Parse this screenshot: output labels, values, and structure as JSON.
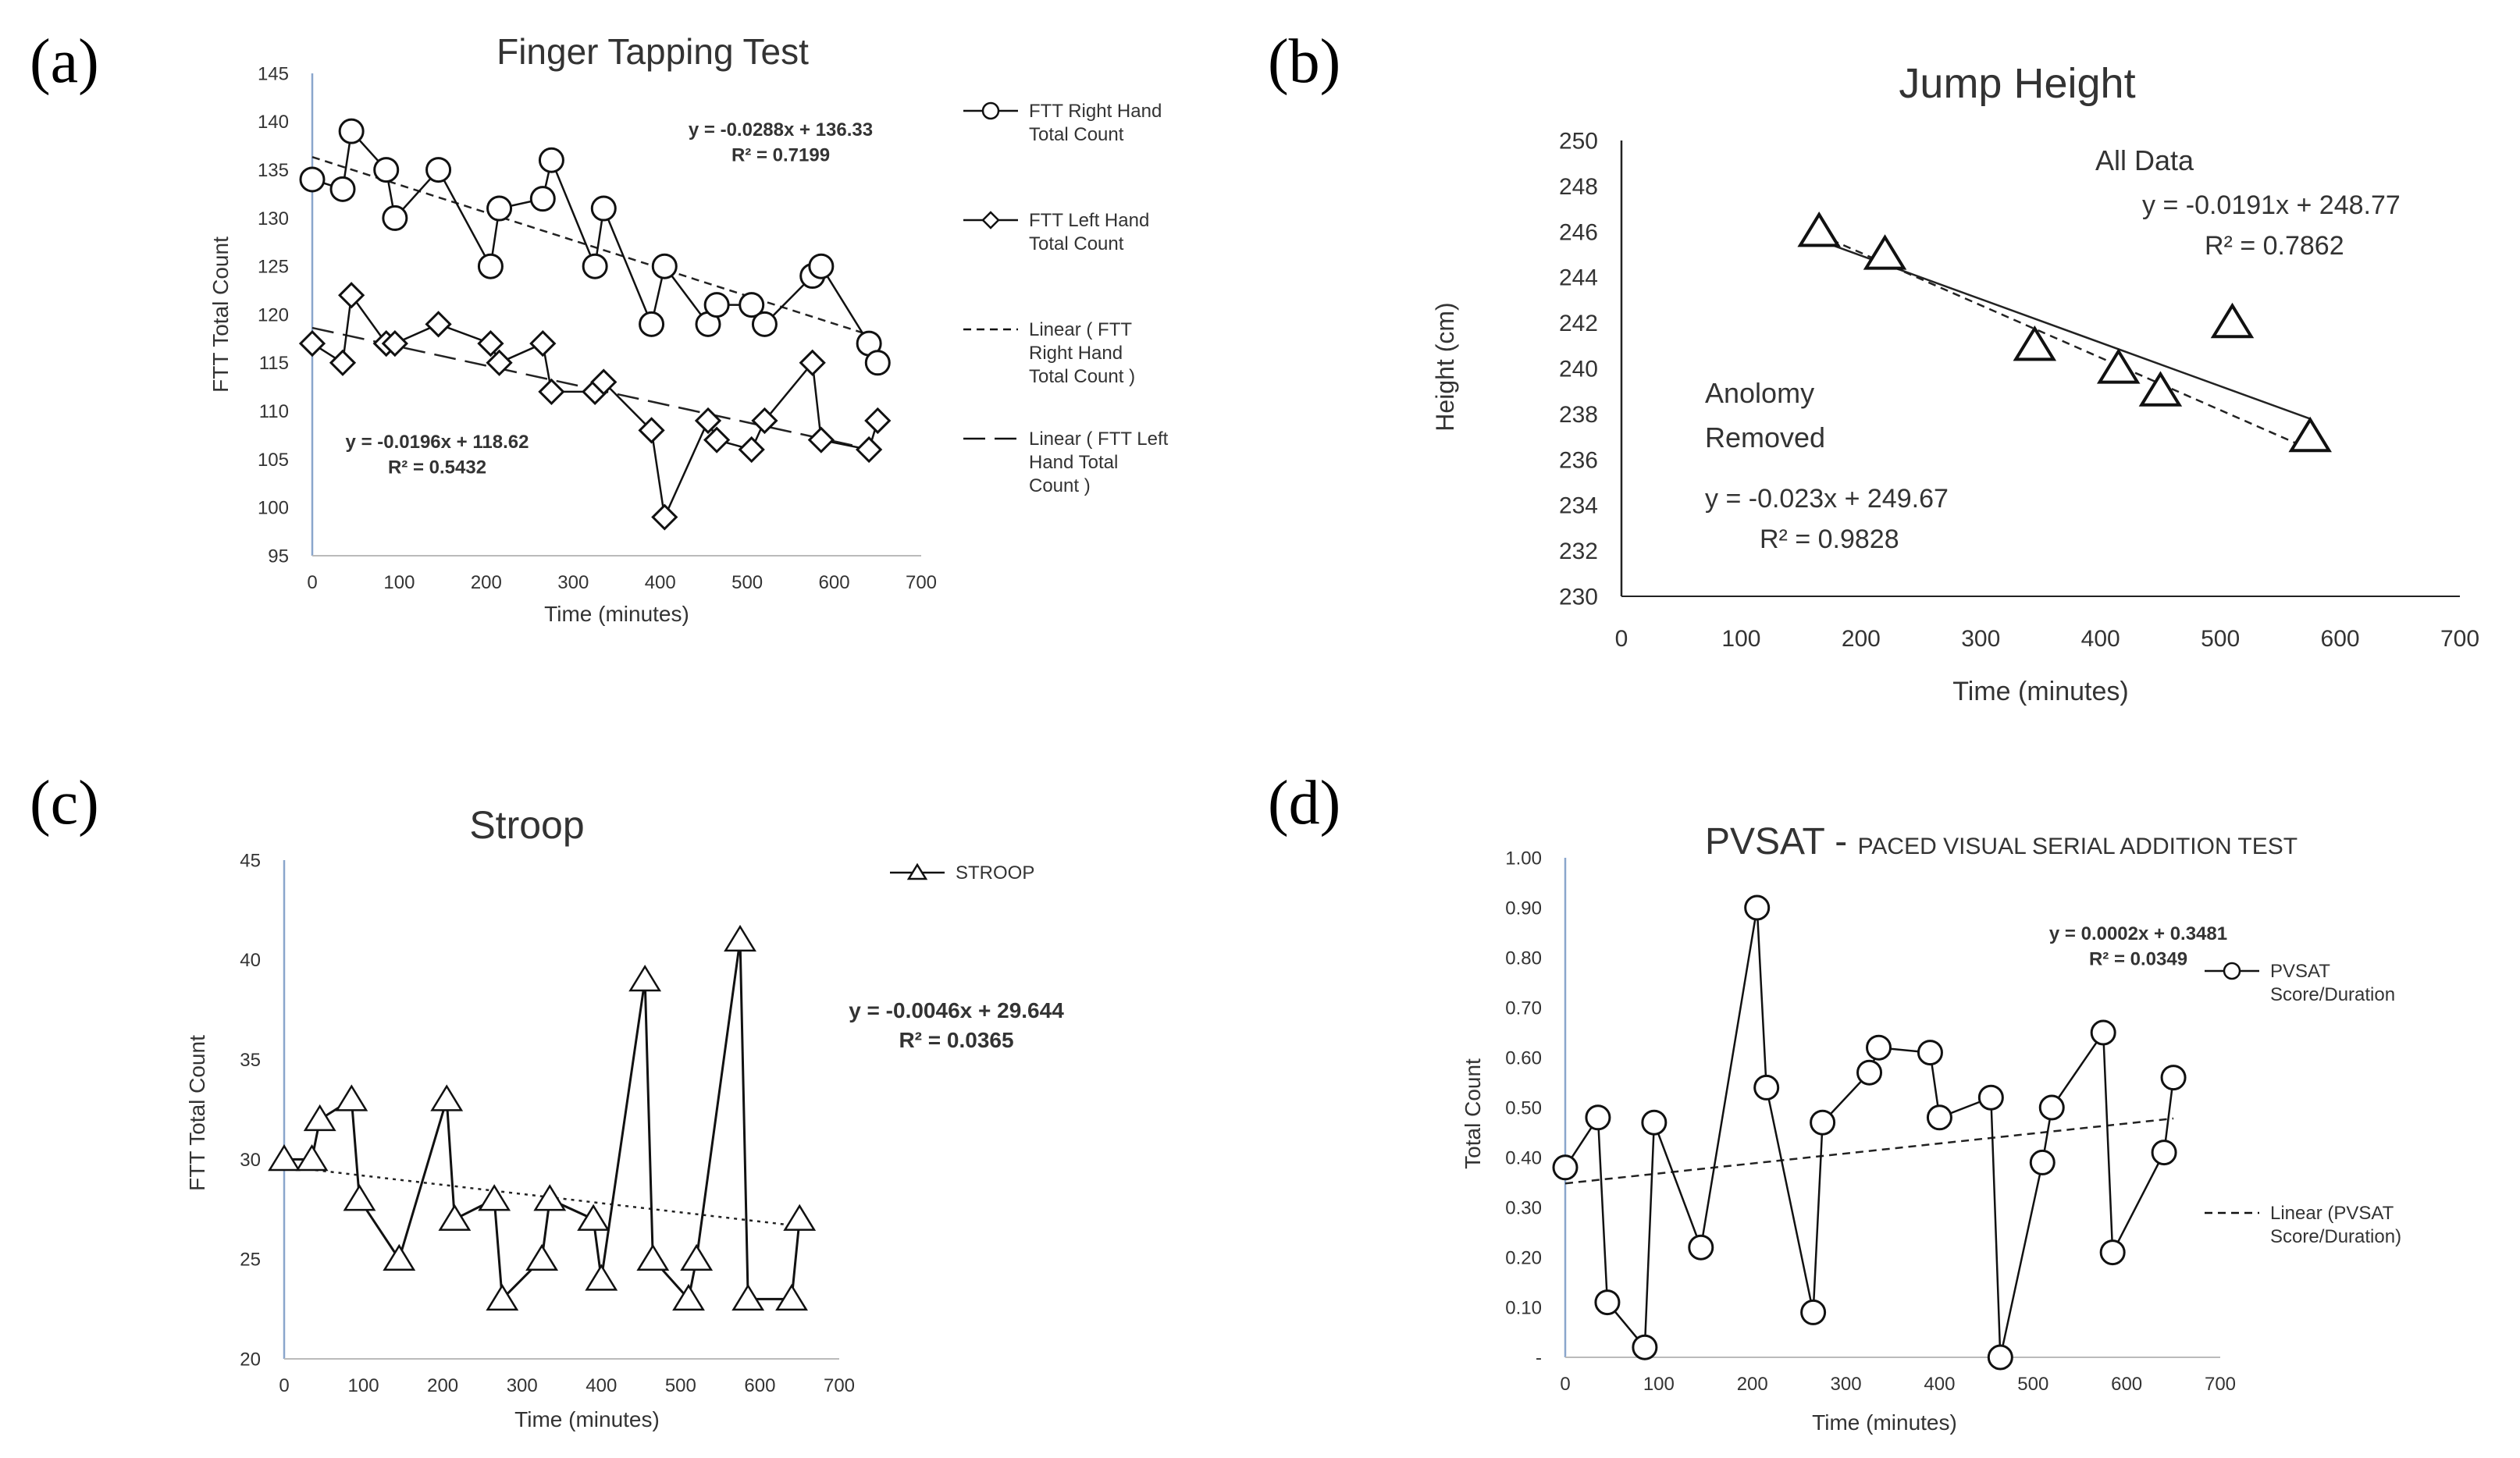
{
  "chart_data": [
    {
      "panel_label": "(a)",
      "type": "line",
      "title": "Finger Tapping Test",
      "xlabel": "Time (minutes)",
      "ylabel": "FTT Total Count",
      "xlim": [
        0,
        700
      ],
      "ylim": [
        95,
        145
      ],
      "xticks": [
        "0",
        "100",
        "200",
        "300",
        "400",
        "500",
        "600",
        "700"
      ],
      "yticks": [
        "95",
        "100",
        "105",
        "110",
        "115",
        "120",
        "125",
        "130",
        "135",
        "140",
        "145"
      ],
      "series": [
        {
          "name": "FTT Right Hand Total Count",
          "marker": "circle",
          "x": [
            0,
            35,
            45,
            85,
            95,
            145,
            205,
            215,
            265,
            275,
            325,
            335,
            390,
            405,
            455,
            465,
            505,
            520,
            575,
            585,
            640,
            650
          ],
          "values": [
            134,
            133,
            139,
            135,
            130,
            135,
            125,
            131,
            132,
            136,
            125,
            131,
            119,
            125,
            119,
            121,
            121,
            119,
            124,
            125,
            117,
            115
          ]
        },
        {
          "name": "FTT Left Hand Total Count",
          "marker": "diamond",
          "x": [
            0,
            35,
            45,
            85,
            95,
            145,
            205,
            215,
            265,
            275,
            325,
            335,
            390,
            405,
            455,
            465,
            505,
            520,
            575,
            585,
            640,
            650
          ],
          "values": [
            117,
            115,
            122,
            117,
            117,
            119,
            117,
            115,
            117,
            112,
            112,
            113,
            108,
            99,
            109,
            107,
            106,
            109,
            115,
            107,
            106,
            109
          ]
        }
      ],
      "trendlines": [
        {
          "name": "Linear ( FTT Right Hand Total Count )",
          "slope": -0.0288,
          "intercept": 136.33,
          "x": [
            0,
            650
          ],
          "dash": "short",
          "equation": "y = -0.0288x + 136.33",
          "r2": "R² = 0.7199"
        },
        {
          "name": "Linear ( FTT Left Hand Total Count )",
          "slope": -0.0196,
          "intercept": 118.62,
          "x": [
            0,
            650
          ],
          "dash": "long",
          "equation": "y = -0.0196x + 118.62",
          "r2": "R² = 0.5432"
        }
      ],
      "legend": [
        {
          "lines": [
            "FTT Right Hand",
            "Total Count"
          ],
          "marker": "circle",
          "dash": "none"
        },
        {
          "lines": [
            "FTT Left Hand",
            "Total Count"
          ],
          "marker": "diamond",
          "dash": "none"
        },
        {
          "lines": [
            "Linear ( FTT",
            "Right Hand",
            "Total Count )"
          ],
          "marker": "none",
          "dash": "short"
        },
        {
          "lines": [
            "Linear ( FTT Left",
            "Hand Total",
            "Count )"
          ],
          "marker": "none",
          "dash": "long"
        }
      ]
    },
    {
      "panel_label": "(b)",
      "type": "scatter",
      "title": "Jump Height",
      "xlabel": "Time (minutes)",
      "ylabel": "Height (cm)",
      "xlim": [
        0,
        700
      ],
      "ylim": [
        230,
        250
      ],
      "xticks": [
        "0",
        "100",
        "200",
        "300",
        "400",
        "500",
        "600",
        "700"
      ],
      "yticks": [
        "230",
        "232",
        "234",
        "236",
        "238",
        "240",
        "242",
        "244",
        "246",
        "248",
        "250"
      ],
      "series": [
        {
          "name": "Jump Height",
          "marker": "triangle",
          "x": [
            165,
            220,
            345,
            415,
            450,
            510,
            575
          ],
          "values": [
            246,
            245,
            241,
            240,
            239,
            242,
            237
          ]
        }
      ],
      "trendlines": [
        {
          "name": "All Data",
          "slope": -0.0191,
          "intercept": 248.77,
          "x": [
            165,
            575
          ],
          "dash": "none",
          "label": "All Data",
          "equation": "y = -0.0191x + 248.77",
          "r2": "R² = 0.7862"
        },
        {
          "name": "Anolomy Removed",
          "slope": -0.023,
          "intercept": 249.67,
          "x": [
            165,
            575
          ],
          "dash": "short",
          "label_lines": [
            "Anolomy",
            "Removed"
          ],
          "equation": "y = -0.023x + 249.67",
          "r2": "R² = 0.9828"
        }
      ]
    },
    {
      "panel_label": "(c)",
      "type": "line",
      "title": "Stroop",
      "xlabel": "Time (minutes)",
      "ylabel": "FTT Total Count",
      "xlim": [
        0,
        700
      ],
      "ylim": [
        20,
        45
      ],
      "xticks": [
        "0",
        "100",
        "200",
        "300",
        "400",
        "500",
        "600",
        "700"
      ],
      "yticks": [
        "20",
        "25",
        "30",
        "35",
        "40",
        "45"
      ],
      "series": [
        {
          "name": "STROOP",
          "marker": "triangle",
          "x": [
            0,
            35,
            45,
            85,
            95,
            145,
            205,
            215,
            265,
            275,
            325,
            335,
            390,
            400,
            455,
            465,
            510,
            520,
            575,
            585,
            640,
            650
          ],
          "values": [
            30,
            30,
            32,
            33,
            28,
            25,
            33,
            27,
            28,
            23,
            25,
            28,
            27,
            24,
            39,
            25,
            23,
            25,
            41,
            23,
            23,
            27
          ]
        }
      ],
      "trendlines": [
        {
          "name": "Linear (STROOP)",
          "slope": -0.0046,
          "intercept": 29.644,
          "x": [
            0,
            650
          ],
          "dash": "dotted",
          "equation": "y = -0.0046x + 29.644",
          "r2": "R² = 0.0365"
        }
      ],
      "legend": [
        {
          "lines": [
            "STROOP"
          ],
          "marker": "triangle",
          "dash": "none"
        }
      ]
    },
    {
      "panel_label": "(d)",
      "type": "line",
      "title": "PVSAT - ",
      "subtitle": "PACED VISUAL SERIAL ADDITION TEST",
      "xlabel": "Time (minutes)",
      "ylabel": "Total Count",
      "xlim": [
        0,
        700
      ],
      "ylim": [
        0,
        1
      ],
      "xticks": [
        "0",
        "100",
        "200",
        "300",
        "400",
        "500",
        "600",
        "700"
      ],
      "yticks": [
        "-",
        "0.10",
        "0.20",
        "0.30",
        "0.40",
        "0.50",
        "0.60",
        "0.70",
        "0.80",
        "0.90",
        "1.00"
      ],
      "series": [
        {
          "name": "PVSAT Score/Duration",
          "marker": "circle",
          "x": [
            0,
            35,
            45,
            85,
            95,
            145,
            205,
            215,
            265,
            275,
            325,
            335,
            390,
            400,
            455,
            465,
            510,
            520,
            575,
            585,
            640,
            650
          ],
          "values": [
            0.38,
            0.48,
            0.11,
            0.02,
            0.47,
            0.22,
            0.9,
            0.54,
            0.09,
            0.47,
            0.57,
            0.62,
            0.61,
            0.48,
            0.52,
            0.0,
            0.39,
            0.5,
            0.65,
            0.21,
            0.41,
            0.56
          ]
        }
      ],
      "trendlines": [
        {
          "name": "Linear (PVSAT Score/Duration)",
          "slope": 0.0002,
          "intercept": 0.3481,
          "x": [
            0,
            650
          ],
          "dash": "short",
          "equation": "y = 0.0002x + 0.3481",
          "r2": "R² = 0.0349"
        }
      ],
      "legend": [
        {
          "lines": [
            "PVSAT",
            "Score/Duration"
          ],
          "marker": "circle",
          "dash": "none"
        },
        {
          "lines": [
            "Linear (PVSAT",
            "Score/Duration)"
          ],
          "marker": "none",
          "dash": "short"
        }
      ]
    }
  ]
}
